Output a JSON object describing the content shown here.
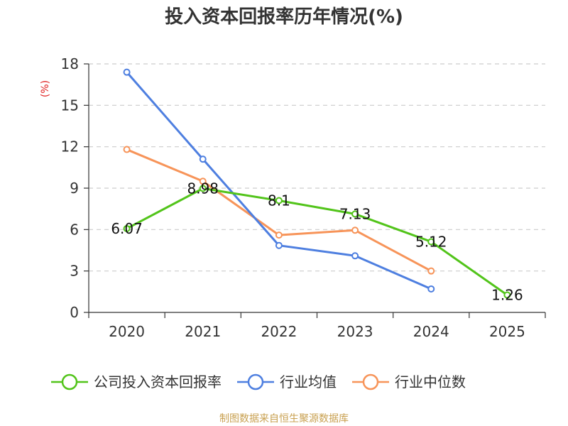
{
  "chart_data": {
    "type": "line",
    "title": "投入资本回报率历年情况(%)",
    "ylabel": "(%)",
    "xlabel": "",
    "categories": [
      "2020",
      "2021",
      "2022",
      "2023",
      "2024",
      "2025"
    ],
    "ylim": [
      0,
      18
    ],
    "yticks": [
      0,
      3,
      6,
      9,
      12,
      15,
      18
    ],
    "grid": true,
    "legend_position": "bottom",
    "series": [
      {
        "name": "公司投入资本回报率",
        "color": "#52c41a",
        "values": [
          6.07,
          8.98,
          8.1,
          7.13,
          5.12,
          1.26
        ],
        "labels": [
          "6.07",
          "8.98",
          "8.1",
          "7.13",
          "5.12",
          "1.26"
        ]
      },
      {
        "name": "行业均值",
        "color": "#4e7fe0",
        "values": [
          17.4,
          11.1,
          4.85,
          4.1,
          1.7,
          null
        ]
      },
      {
        "name": "行业中位数",
        "color": "#f79459",
        "values": [
          11.8,
          9.5,
          5.6,
          5.95,
          3.0,
          null
        ]
      }
    ],
    "source": "制图数据来自恒生聚源数据库"
  },
  "colors": {
    "title": "#333333",
    "unit": "#e02020",
    "source": "#c8a050",
    "axis": "#333333",
    "grid": "#cccccc"
  }
}
